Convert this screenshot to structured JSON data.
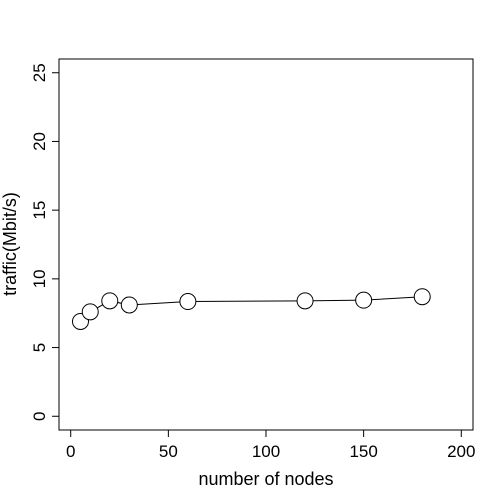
{
  "chart_data": {
    "type": "line",
    "title": "",
    "xlabel": "number of nodes",
    "ylabel": "traffic(Mbit/s)",
    "xlim": [
      -6,
      206
    ],
    "ylim": [
      -1,
      26
    ],
    "xticks": [
      0,
      50,
      100,
      150,
      200
    ],
    "xtick_labels": [
      "0",
      "50",
      "100",
      "150",
      "200"
    ],
    "yticks": [
      0,
      5,
      10,
      15,
      20,
      25
    ],
    "ytick_labels": [
      "0",
      "5",
      "10",
      "15",
      "20",
      "25"
    ],
    "grid": false,
    "series": [
      {
        "x": [
          5,
          10,
          20,
          30,
          60,
          120,
          150,
          180
        ],
        "y": [
          6.9,
          7.6,
          8.4,
          8.1,
          8.35,
          8.4,
          8.45,
          8.7
        ],
        "marker": "open-circle",
        "line_color": "#000000"
      }
    ]
  }
}
